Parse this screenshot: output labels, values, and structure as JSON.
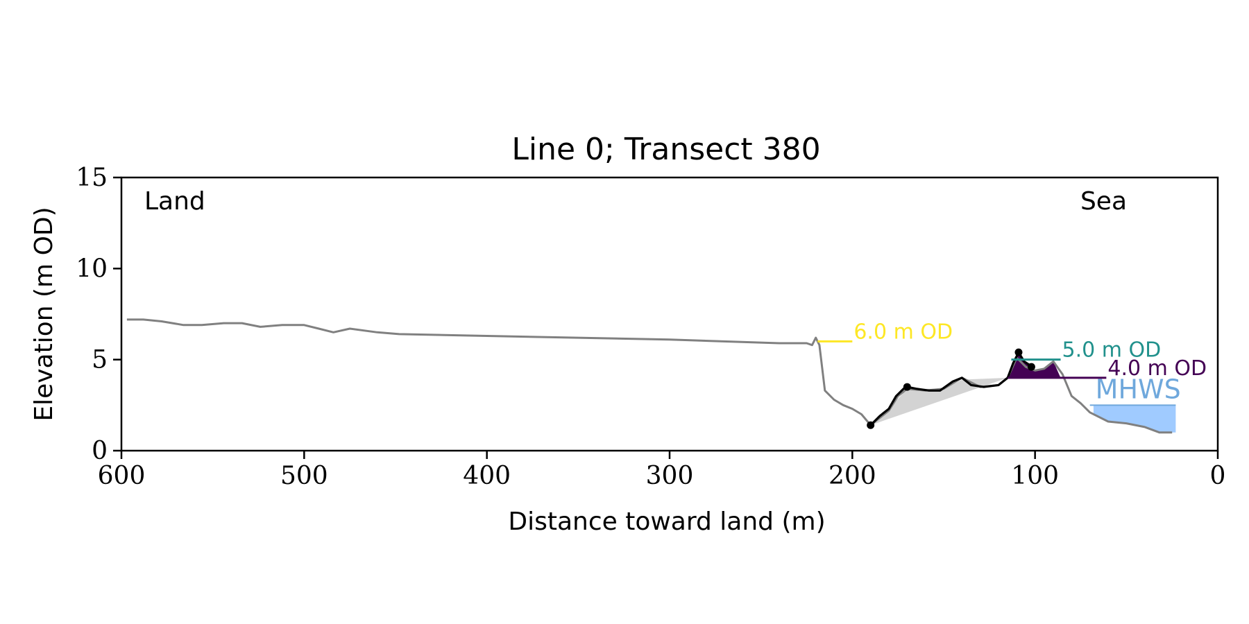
{
  "chart_data": {
    "type": "line",
    "title": "Line 0; Transect 380",
    "xlabel": "Distance toward land (m)",
    "ylabel": "Elevation (m OD)",
    "xlim": [
      600,
      0
    ],
    "ylim": [
      0,
      15
    ],
    "x_ticks": [
      600,
      500,
      400,
      300,
      200,
      100,
      0
    ],
    "y_ticks": [
      0,
      5,
      10,
      15
    ],
    "corner_labels": {
      "left": "Land",
      "right": "Sea"
    },
    "grid": false,
    "series": [
      {
        "color": "#808080",
        "points": [
          [
            597,
            7.2
          ],
          [
            588,
            7.2
          ],
          [
            578,
            7.1
          ],
          [
            566,
            6.9
          ],
          [
            556,
            6.9
          ],
          [
            544,
            7.0
          ],
          [
            534,
            7.0
          ],
          [
            524,
            6.8
          ],
          [
            512,
            6.9
          ],
          [
            500,
            6.9
          ],
          [
            492,
            6.7
          ],
          [
            484,
            6.5
          ],
          [
            475,
            6.7
          ],
          [
            460,
            6.5
          ],
          [
            448,
            6.4
          ],
          [
            400,
            6.3
          ],
          [
            300,
            6.1
          ],
          [
            240,
            5.9
          ],
          [
            225,
            5.9
          ],
          [
            222,
            5.8
          ],
          [
            220,
            6.2
          ],
          [
            218,
            5.8
          ],
          [
            215,
            3.3
          ],
          [
            210,
            2.8
          ],
          [
            205,
            2.5
          ],
          [
            200,
            2.3
          ],
          [
            195,
            2.0
          ],
          [
            190,
            1.4
          ],
          [
            185,
            1.8
          ],
          [
            180,
            2.2
          ],
          [
            175,
            3.0
          ],
          [
            170,
            3.4
          ],
          [
            160,
            3.3
          ],
          [
            150,
            3.4
          ],
          [
            140,
            4.0
          ],
          [
            130,
            3.5
          ],
          [
            120,
            3.6
          ],
          [
            115,
            4.0
          ],
          [
            110,
            5.1
          ],
          [
            105,
            4.6
          ],
          [
            100,
            4.4
          ],
          [
            95,
            4.5
          ],
          [
            90,
            4.9
          ],
          [
            85,
            4.2
          ],
          [
            80,
            3.0
          ],
          [
            75,
            2.6
          ],
          [
            70,
            2.1
          ],
          [
            60,
            1.6
          ],
          [
            50,
            1.5
          ],
          [
            40,
            1.3
          ],
          [
            32,
            1.0
          ],
          [
            25,
            1.0
          ]
        ]
      },
      {
        "color": "#000000",
        "points": [
          [
            190,
            1.4
          ],
          [
            185,
            1.9
          ],
          [
            180,
            2.3
          ],
          [
            176,
            3.0
          ],
          [
            172,
            3.4
          ],
          [
            170,
            3.5
          ],
          [
            165,
            3.4
          ],
          [
            158,
            3.3
          ],
          [
            152,
            3.3
          ],
          [
            145,
            3.8
          ],
          [
            140,
            4.0
          ],
          [
            135,
            3.6
          ],
          [
            128,
            3.5
          ],
          [
            120,
            3.6
          ],
          [
            115,
            4.0
          ],
          [
            112,
            4.8
          ],
          [
            109,
            5.4
          ],
          [
            106,
            4.9
          ],
          [
            103,
            4.7
          ],
          [
            101,
            4.6
          ]
        ]
      }
    ],
    "fills": [
      {
        "color": "#d3d3d3",
        "points": [
          [
            190,
            1.4
          ],
          [
            115,
            4.0
          ],
          [
            140,
            3.9
          ],
          [
            150,
            3.4
          ],
          [
            170,
            3.4
          ],
          [
            180,
            2.3
          ]
        ]
      },
      {
        "color": "#440154",
        "points": [
          [
            115,
            4.0
          ],
          [
            112,
            4.8
          ],
          [
            109,
            5.4
          ],
          [
            106,
            4.9
          ],
          [
            103,
            4.7
          ],
          [
            100,
            4.4
          ],
          [
            95,
            4.5
          ],
          [
            90,
            4.9
          ],
          [
            86,
            4.0
          ]
        ]
      },
      {
        "color": "#a0cbff",
        "points": [
          [
            68,
            2.5
          ],
          [
            23,
            2.5
          ],
          [
            23,
            1.0
          ],
          [
            30,
            1.0
          ],
          [
            40,
            1.3
          ],
          [
            50,
            1.5
          ],
          [
            60,
            1.6
          ],
          [
            68,
            2.0
          ]
        ]
      }
    ],
    "markers": [
      {
        "x": 190,
        "y": 1.4
      },
      {
        "x": 170,
        "y": 3.5
      },
      {
        "x": 109,
        "y": 5.4
      },
      {
        "x": 102,
        "y": 4.6
      }
    ],
    "levels": [
      {
        "label": "6.0 m OD",
        "color": "#fde725",
        "y": 6.0,
        "x_start": 219,
        "x_end": 200
      },
      {
        "label": "5.0 m OD",
        "color": "#21918c",
        "y": 5.0,
        "x_start": 113,
        "x_end": 86
      },
      {
        "label": "4.0 m OD",
        "color": "#440154",
        "y": 4.0,
        "x_start": 115,
        "x_end": 61
      },
      {
        "label": "MHWS",
        "color": "#6fa8dc",
        "y": 2.5,
        "x_start": 70,
        "x_end": 23
      }
    ]
  }
}
